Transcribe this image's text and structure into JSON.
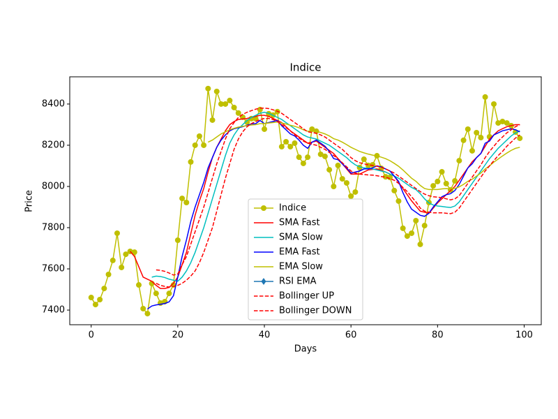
{
  "chart_data": {
    "type": "line",
    "title": "Indice",
    "x_label": "Days",
    "y_label": "Price",
    "x": [
      0,
      1,
      2,
      3,
      4,
      5,
      6,
      7,
      8,
      9,
      10,
      11,
      12,
      13,
      14,
      15,
      16,
      17,
      18,
      19,
      20,
      21,
      22,
      23,
      24,
      25,
      26,
      27,
      28,
      29,
      30,
      31,
      32,
      33,
      34,
      35,
      36,
      37,
      38,
      39,
      40,
      41,
      42,
      43,
      44,
      45,
      46,
      47,
      48,
      49,
      50,
      51,
      52,
      53,
      54,
      55,
      56,
      57,
      58,
      59,
      60,
      61,
      62,
      63,
      64,
      65,
      66,
      67,
      68,
      69,
      70,
      71,
      72,
      73,
      74,
      75,
      76,
      77,
      78,
      79,
      80,
      81,
      82,
      83,
      84,
      85,
      86,
      87,
      88,
      89,
      90,
      91,
      92,
      93,
      94,
      95,
      96,
      97,
      98,
      99
    ],
    "xlim": [
      -4.95,
      103.95
    ],
    "xticks": [
      0,
      20,
      40,
      60,
      80,
      100
    ],
    "ylim": [
      7329,
      8532
    ],
    "yticks": [
      7400,
      7600,
      7800,
      8000,
      8200,
      8400
    ],
    "legend": "lower center",
    "series": [
      {
        "name": "Indice",
        "color": "#bfbf00",
        "marker": "circle",
        "dash": "solid",
        "values": [
          7461,
          7427,
          7451,
          7505,
          7573,
          7641,
          7773,
          7607,
          7671,
          7685,
          7681,
          7522,
          7407,
          7383,
          7529,
          7481,
          7434,
          7441,
          7481,
          7522,
          7739,
          7942,
          7922,
          8119,
          8200,
          8244,
          8200,
          8475,
          8322,
          8461,
          8400,
          8400,
          8417,
          8383,
          8356,
          8336,
          8312,
          8329,
          8329,
          8373,
          8278,
          8353,
          8346,
          8363,
          8193,
          8217,
          8193,
          8210,
          8142,
          8112,
          8142,
          8278,
          8268,
          8156,
          8146,
          8081,
          8000,
          8102,
          8037,
          8017,
          7953,
          7973,
          8092,
          8132,
          8102,
          8105,
          8149,
          8088,
          8047,
          8044,
          7980,
          7929,
          7797,
          7759,
          7773,
          7834,
          7719,
          7810,
          7922,
          8003,
          8024,
          8071,
          8014,
          7983,
          8027,
          8125,
          8224,
          8278,
          8173,
          8261,
          8237,
          8434,
          8241,
          8400,
          8308,
          8315,
          8308,
          8295,
          8264,
          8234
        ]
      },
      {
        "name": "SMA Fast",
        "color": "#ff0000",
        "marker": "none",
        "dash": "solid",
        "values": [
          null,
          null,
          null,
          null,
          null,
          null,
          null,
          null,
          null,
          7685,
          7660,
          7610,
          7560,
          7550,
          7540,
          7520,
          7505,
          7505,
          7510,
          7530,
          7560,
          7620,
          7680,
          7770,
          7860,
          7930,
          7990,
          8070,
          8140,
          8190,
          8230,
          8270,
          8300,
          8315,
          8325,
          8328,
          8330,
          8335,
          8340,
          8345,
          8345,
          8340,
          8330,
          8320,
          8310,
          8290,
          8270,
          8255,
          8240,
          8225,
          8210,
          8215,
          8220,
          8205,
          8190,
          8175,
          8160,
          8135,
          8110,
          8085,
          8060,
          8060,
          8060,
          8070,
          8080,
          8083,
          8085,
          8078,
          8070,
          8060,
          8050,
          8020,
          7990,
          7960,
          7930,
          7905,
          7880,
          7875,
          7870,
          7895,
          7920,
          7940,
          7960,
          7980,
          8000,
          8030,
          8060,
          8090,
          8120,
          8140,
          8160,
          8195,
          8230,
          8250,
          8270,
          8280,
          8290,
          8295,
          8300,
          8300
        ]
      },
      {
        "name": "SMA Slow",
        "color": "#00bfbf",
        "marker": "none",
        "dash": "solid",
        "values": [
          null,
          null,
          null,
          null,
          null,
          null,
          null,
          null,
          null,
          null,
          null,
          null,
          null,
          null,
          7560,
          7565,
          7563,
          7558,
          7550,
          7545,
          7540,
          7560,
          7590,
          7630,
          7680,
          7740,
          7800,
          7870,
          7940,
          8010,
          8080,
          8150,
          8210,
          8250,
          8280,
          8300,
          8320,
          8335,
          8345,
          8355,
          8360,
          8355,
          8345,
          8335,
          8325,
          8310,
          8295,
          8280,
          8265,
          8250,
          8240,
          8235,
          8230,
          8220,
          8210,
          8200,
          8185,
          8170,
          8155,
          8140,
          8120,
          8105,
          8095,
          8090,
          8088,
          8085,
          8080,
          8075,
          8070,
          8060,
          8050,
          8040,
          8025,
          8010,
          7995,
          7985,
          7965,
          7940,
          7920,
          7910,
          7905,
          7903,
          7900,
          7898,
          7905,
          7925,
          7955,
          7985,
          8015,
          8045,
          8075,
          8105,
          8135,
          8160,
          8185,
          8205,
          8225,
          8245,
          8260,
          8270
        ]
      },
      {
        "name": "EMA Fast",
        "color": "#0000ff",
        "marker": "none",
        "dash": "solid",
        "values": [
          null,
          null,
          null,
          null,
          null,
          null,
          null,
          null,
          null,
          null,
          null,
          null,
          null,
          7405,
          7420,
          7425,
          7428,
          7432,
          7440,
          7470,
          7560,
          7660,
          7740,
          7830,
          7900,
          7960,
          8020,
          8090,
          8140,
          8190,
          8225,
          8250,
          8270,
          8280,
          8285,
          8290,
          8297,
          8303,
          8305,
          8320,
          8305,
          8310,
          8315,
          8320,
          8295,
          8275,
          8255,
          8245,
          8225,
          8200,
          8185,
          8215,
          8225,
          8210,
          8195,
          8170,
          8135,
          8130,
          8110,
          8090,
          8065,
          8070,
          8075,
          8085,
          8085,
          8090,
          8100,
          8095,
          8085,
          8075,
          8050,
          8025,
          7970,
          7925,
          7890,
          7875,
          7860,
          7855,
          7870,
          7900,
          7925,
          7950,
          7960,
          7965,
          7980,
          8010,
          8050,
          8090,
          8110,
          8140,
          8160,
          8210,
          8220,
          8250,
          8260,
          8270,
          8275,
          8280,
          8275,
          8265
        ]
      },
      {
        "name": "EMA Slow",
        "color": "#bfbf00",
        "marker": "none",
        "dash": "solid",
        "values": [
          null,
          null,
          null,
          null,
          null,
          null,
          null,
          null,
          null,
          null,
          null,
          null,
          null,
          null,
          null,
          null,
          null,
          null,
          null,
          null,
          null,
          null,
          null,
          null,
          null,
          null,
          null,
          8215,
          8225,
          8240,
          8255,
          8265,
          8275,
          8282,
          8288,
          8292,
          8295,
          8298,
          8300,
          8305,
          8305,
          8308,
          8310,
          8313,
          8308,
          8303,
          8297,
          8292,
          8285,
          8275,
          8268,
          8268,
          8268,
          8262,
          8255,
          8245,
          8232,
          8225,
          8215,
          8203,
          8190,
          8180,
          8170,
          8163,
          8157,
          8152,
          8148,
          8142,
          8135,
          8125,
          8112,
          8098,
          8080,
          8060,
          8040,
          8025,
          8005,
          7990,
          7985,
          7985,
          7985,
          7988,
          7990,
          7988,
          7990,
          7998,
          8010,
          8025,
          8035,
          8050,
          8065,
          8085,
          8100,
          8118,
          8133,
          8148,
          8162,
          8175,
          8185,
          8190
        ]
      },
      {
        "name": "RSI EMA",
        "color": "#1f77b4",
        "marker": "diamond",
        "dash": "solid",
        "values": [
          null,
          null,
          null,
          null,
          null,
          null,
          null,
          null,
          null,
          null,
          null,
          null,
          null,
          null,
          null,
          null,
          null,
          null,
          null,
          null,
          null,
          null,
          null,
          null,
          null,
          null,
          null,
          null,
          null,
          null,
          null,
          null,
          null,
          null,
          null,
          null,
          null,
          null,
          null,
          null,
          null,
          null,
          null,
          null,
          null,
          null,
          null,
          null,
          null,
          null,
          null,
          null,
          null,
          null,
          null,
          null,
          null,
          null,
          null,
          null,
          null,
          null,
          null,
          null,
          null,
          null,
          null,
          null,
          null,
          null,
          null,
          null,
          null,
          null,
          null,
          null,
          null,
          null,
          null,
          null,
          null,
          null,
          null,
          null,
          null,
          null,
          null,
          null,
          null,
          null,
          null,
          null,
          null,
          null,
          null,
          null,
          null,
          null,
          null,
          null
        ]
      },
      {
        "name": "Bollinger UP",
        "color": "#ff0000",
        "marker": "none",
        "dash": "dashed",
        "values": [
          null,
          null,
          null,
          null,
          null,
          null,
          null,
          null,
          null,
          null,
          null,
          null,
          null,
          null,
          null,
          7595,
          7593,
          7588,
          7580,
          7570,
          7575,
          7620,
          7660,
          7720,
          7780,
          7840,
          7900,
          7970,
          8040,
          8110,
          8170,
          8230,
          8280,
          8310,
          8335,
          8350,
          8360,
          8368,
          8375,
          8380,
          8380,
          8378,
          8372,
          8365,
          8355,
          8340,
          8325,
          8310,
          8295,
          8280,
          8265,
          8262,
          8258,
          8250,
          8240,
          8225,
          8210,
          8195,
          8180,
          8160,
          8140,
          8125,
          8115,
          8110,
          8105,
          8102,
          8098,
          8093,
          8085,
          8075,
          8065,
          8050,
          8035,
          8020,
          8005,
          7990,
          7975,
          7963,
          7955,
          7950,
          7948,
          7945,
          7940,
          7935,
          7940,
          7955,
          7985,
          8015,
          8045,
          8075,
          8105,
          8140,
          8170,
          8195,
          8220,
          8240,
          8260,
          8275,
          8290,
          8300
        ]
      },
      {
        "name": "Bollinger DOWN",
        "color": "#ff0000",
        "marker": "none",
        "dash": "dashed",
        "values": [
          null,
          null,
          null,
          null,
          null,
          null,
          null,
          null,
          null,
          null,
          null,
          null,
          null,
          null,
          null,
          7530,
          7520,
          7515,
          7512,
          7515,
          7520,
          7530,
          7545,
          7565,
          7590,
          7630,
          7680,
          7740,
          7800,
          7880,
          7960,
          8040,
          8110,
          8180,
          8230,
          8265,
          8290,
          8305,
          8315,
          8325,
          8330,
          8330,
          8325,
          8315,
          8300,
          8285,
          8270,
          8250,
          8235,
          8220,
          8210,
          8205,
          8200,
          8190,
          8180,
          8165,
          8150,
          8135,
          8115,
          8095,
          8075,
          8065,
          8060,
          8058,
          8056,
          8055,
          8052,
          8048,
          8045,
          8038,
          8030,
          8015,
          7995,
          7975,
          7950,
          7925,
          7895,
          7880,
          7875,
          7872,
          7872,
          7872,
          7870,
          7868,
          7875,
          7895,
          7925,
          7955,
          7985,
          8015,
          8045,
          8075,
          8100,
          8125,
          8150,
          8170,
          8195,
          8215,
          8235,
          8250
        ]
      }
    ]
  }
}
